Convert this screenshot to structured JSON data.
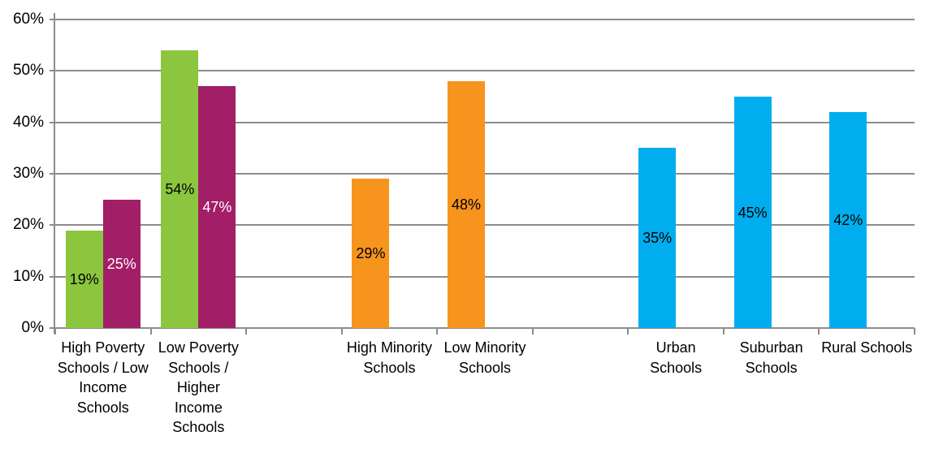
{
  "chart": {
    "background_color": "#FFFFFF",
    "grid_color": "#8C8C8C",
    "text_color": "#000000"
  },
  "chart_data": {
    "type": "bar",
    "title": "",
    "xlabel": "",
    "ylabel": "",
    "ylim": [
      0,
      60
    ],
    "ytick_step": 10,
    "grid": true,
    "legend_position": "none",
    "n_slots": 9,
    "yticks": [
      {
        "value": 0,
        "label": "0%"
      },
      {
        "value": 10,
        "label": "10%"
      },
      {
        "value": 20,
        "label": "20%"
      },
      {
        "value": 30,
        "label": "30%"
      },
      {
        "value": 40,
        "label": "40%"
      },
      {
        "value": 50,
        "label": "50%"
      },
      {
        "value": 60,
        "label": "60%"
      }
    ],
    "colors": {
      "green": "#8CC63F",
      "magenta": "#A21E67",
      "orange": "#F7941E",
      "blue": "#00AEEF"
    },
    "categories": [
      {
        "slot": 0,
        "name": "High Poverty Schools / Low Income Schools",
        "label_lines": [
          "High Poverty",
          "Schools / Low",
          "Income",
          "Schools"
        ],
        "bars": [
          {
            "series": 0,
            "value": 19,
            "label": "19%",
            "color": "green",
            "label_color": "#000000"
          },
          {
            "series": 1,
            "value": 25,
            "label": "25%",
            "color": "magenta",
            "label_color": "#FFFFFF"
          }
        ]
      },
      {
        "slot": 1,
        "name": "Low Poverty Schools / Higher Income Schools",
        "label_lines": [
          "Low Poverty",
          "Schools /",
          "Higher",
          "Income",
          "Schools"
        ],
        "bars": [
          {
            "series": 0,
            "value": 54,
            "label": "54%",
            "color": "green",
            "label_color": "#000000"
          },
          {
            "series": 1,
            "value": 47,
            "label": "47%",
            "color": "magenta",
            "label_color": "#FFFFFF"
          }
        ]
      },
      {
        "slot": 3,
        "name": "High Minority Schools",
        "label_lines": [
          "High Minority",
          "Schools"
        ],
        "bars": [
          {
            "series": 0,
            "value": 29,
            "label": "29%",
            "color": "orange",
            "label_color": "#000000"
          }
        ]
      },
      {
        "slot": 4,
        "name": "Low Minority Schools",
        "label_lines": [
          "Low Minority",
          "Schools"
        ],
        "bars": [
          {
            "series": 0,
            "value": 48,
            "label": "48%",
            "color": "orange",
            "label_color": "#000000"
          }
        ]
      },
      {
        "slot": 6,
        "name": "Urban Schools",
        "label_lines": [
          "Urban",
          "Schools"
        ],
        "bars": [
          {
            "series": 0,
            "value": 35,
            "label": "35%",
            "color": "blue",
            "label_color": "#000000"
          }
        ]
      },
      {
        "slot": 7,
        "name": "Suburban Schools",
        "label_lines": [
          "Suburban",
          "Schools"
        ],
        "bars": [
          {
            "series": 0,
            "value": 45,
            "label": "45%",
            "color": "blue",
            "label_color": "#000000"
          }
        ]
      },
      {
        "slot": 8,
        "name": "Rural Schools",
        "label_lines": [
          "Rural Schools"
        ],
        "bars": [
          {
            "series": 0,
            "value": 42,
            "label": "42%",
            "color": "blue",
            "label_color": "#000000"
          }
        ]
      }
    ]
  }
}
